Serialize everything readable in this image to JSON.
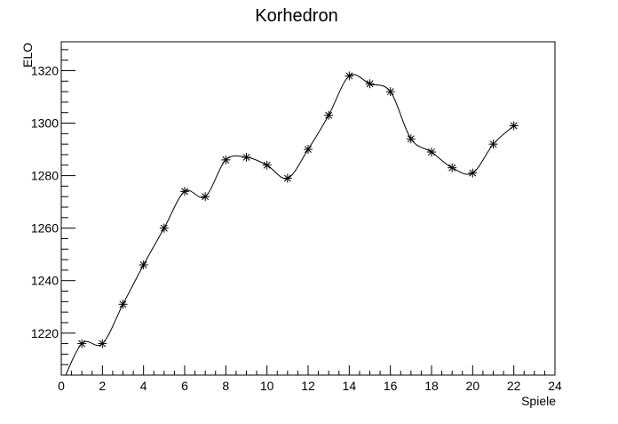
{
  "chart_data": {
    "type": "line",
    "title": "Korhedron",
    "xlabel": "Spiele",
    "ylabel": "ELO",
    "xlim": [
      0,
      24
    ],
    "ylim": [
      1204,
      1331
    ],
    "x_ticks": [
      0,
      2,
      4,
      6,
      8,
      10,
      12,
      14,
      16,
      18,
      20,
      22,
      24
    ],
    "y_ticks": [
      1220,
      1240,
      1260,
      1280,
      1300,
      1320
    ],
    "grid": false,
    "legend": "none",
    "marker": "asterisk",
    "line_style": "smooth",
    "colors": {
      "line": "#000000",
      "marker": "#000000",
      "frame": "#000000",
      "background": "#ffffff"
    },
    "x": [
      0,
      1,
      2,
      3,
      4,
      5,
      6,
      7,
      8,
      9,
      10,
      11,
      12,
      13,
      14,
      15,
      16,
      17,
      18,
      19,
      20,
      21,
      22
    ],
    "y": [
      1200,
      1216,
      1216,
      1231,
      1246,
      1260,
      1274,
      1272,
      1286,
      1287,
      1284,
      1279,
      1290,
      1303,
      1318,
      1315,
      1312,
      1294,
      1289,
      1283,
      1281,
      1292,
      1299
    ]
  }
}
